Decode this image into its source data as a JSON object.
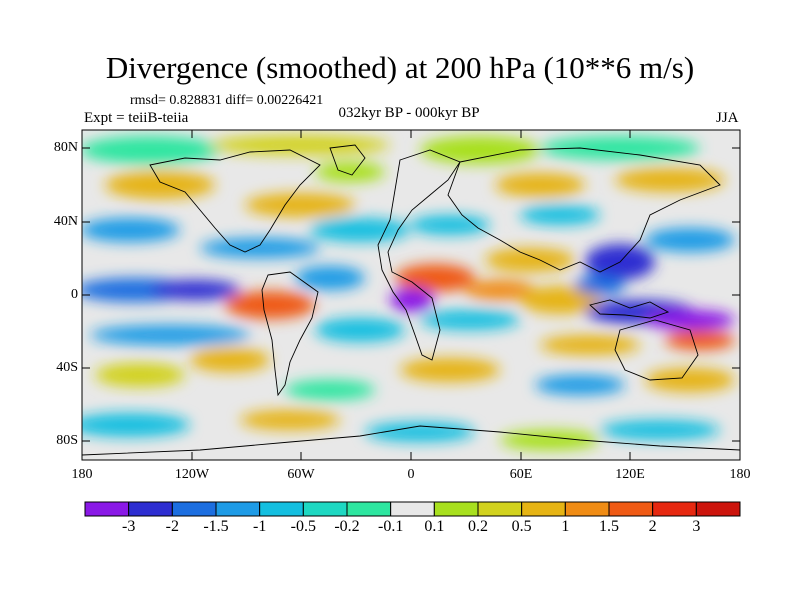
{
  "title": "Divergence (smoothed) at 200 hPa (10**6 m/s)",
  "stats": "rmsd= 0.828831 diff= 0.00226421",
  "experiment": "Expt = teiiB-teiia",
  "period": "032kyr BP - 000kyr BP",
  "season": "JJA",
  "lat_labels": [
    "80N",
    "40N",
    "0",
    "40S",
    "80S"
  ],
  "lon_labels": [
    "180",
    "120W",
    "60W",
    "0",
    "60E",
    "120E",
    "180"
  ],
  "colorbar": {
    "labels": [
      "-3",
      "-2",
      "-1.5",
      "-1",
      "-0.5",
      "-0.2",
      "-0.1",
      "0.1",
      "0.2",
      "0.5",
      "1",
      "1.5",
      "2",
      "3"
    ],
    "colors": [
      "#8a19e6",
      "#2e2ed1",
      "#1c6ee0",
      "#1e9be6",
      "#14bfe0",
      "#1ed8c2",
      "#2ee6a0",
      "#e8e8e8",
      "#a8e01e",
      "#d2d21e",
      "#e6b414",
      "#f08c14",
      "#ef5a14",
      "#e62810",
      "#cc140c"
    ]
  }
}
